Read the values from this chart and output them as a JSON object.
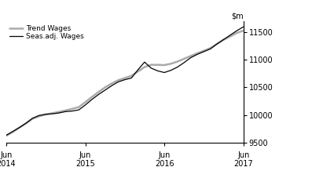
{
  "title": "",
  "ylim": [
    9500,
    11700
  ],
  "yticks": [
    9500,
    10000,
    10500,
    11000,
    11500
  ],
  "seas_adj_color": "#000000",
  "trend_color": "#aaaaaa",
  "seas_adj_label": "Seas.adj. Wages",
  "trend_label": "Trend Wages",
  "background_color": "#ffffff",
  "seas_adj_x": [
    0,
    1,
    2,
    3,
    4,
    5,
    6,
    7,
    8,
    9,
    10,
    11,
    12,
    13,
    14,
    15,
    16,
    17,
    18,
    19,
    20,
    21,
    22,
    23,
    24,
    25,
    26,
    27,
    28,
    29,
    30,
    31,
    32,
    33,
    34,
    35,
    36
  ],
  "seas_adj_y": [
    9630,
    9700,
    9770,
    9850,
    9940,
    9990,
    10010,
    10020,
    10035,
    10060,
    10070,
    10090,
    10180,
    10280,
    10370,
    10450,
    10530,
    10600,
    10640,
    10670,
    10820,
    10960,
    10850,
    10800,
    10770,
    10810,
    10870,
    10950,
    11040,
    11100,
    11150,
    11200,
    11290,
    11370,
    11450,
    11530,
    11600
  ],
  "trend_x": [
    0,
    1,
    2,
    3,
    4,
    5,
    6,
    7,
    8,
    9,
    10,
    11,
    12,
    13,
    14,
    15,
    16,
    17,
    18,
    19,
    20,
    21,
    22,
    23,
    24,
    25,
    26,
    27,
    28,
    29,
    30,
    31,
    32,
    33,
    34,
    35,
    36
  ],
  "trend_y": [
    9620,
    9690,
    9770,
    9845,
    9930,
    9975,
    10010,
    10030,
    10055,
    10080,
    10110,
    10140,
    10230,
    10325,
    10415,
    10500,
    10570,
    10630,
    10670,
    10710,
    10790,
    10870,
    10910,
    10910,
    10905,
    10930,
    10970,
    11020,
    11070,
    11120,
    11165,
    11215,
    11290,
    11365,
    11425,
    11490,
    11530
  ],
  "xtick_positions": [
    0,
    12,
    24,
    36
  ],
  "xtick_labels_top": [
    "Jun",
    "Jun",
    "Jun",
    "Jun"
  ],
  "xtick_labels_bottom": [
    "2014",
    "2015",
    "2016",
    "2017"
  ]
}
